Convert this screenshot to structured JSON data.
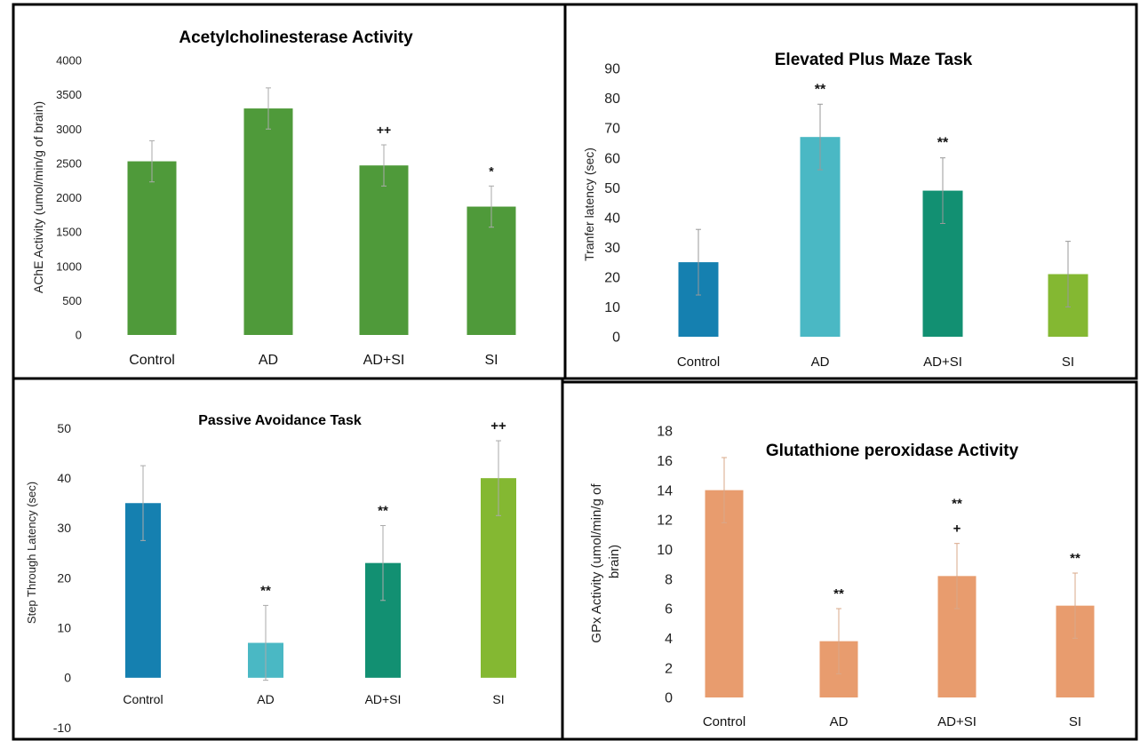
{
  "chart_data": [
    {
      "type": "bar",
      "title": "Acetylcholinesterase Activity",
      "ylabel": "AChE Activity (umol/min/g of brain)",
      "categories": [
        "Control",
        "AD",
        "AD+SI",
        "SI"
      ],
      "values": [
        2530,
        3300,
        2470,
        1870
      ],
      "errors": [
        300,
        300,
        300,
        300
      ],
      "annotations": [
        "",
        "",
        "++",
        "*"
      ],
      "ylim": [
        0,
        4000
      ],
      "yticks": [
        "0",
        "500",
        "1000",
        "1500",
        "2000",
        "2500",
        "3000",
        "3500",
        "4000"
      ],
      "colors": [
        "#4f9a3a",
        "#4f9a3a",
        "#4f9a3a",
        "#4f9a3a"
      ],
      "grid": false,
      "legend": "none"
    },
    {
      "type": "bar",
      "title": "Elevated Plus Maze Task",
      "ylabel": "Tranfer latency (sec)",
      "categories": [
        "Control",
        "AD",
        "AD+SI",
        "SI"
      ],
      "values": [
        25,
        67,
        49,
        21
      ],
      "errors": [
        11,
        11,
        11,
        11
      ],
      "annotations": [
        "",
        "**",
        "**",
        ""
      ],
      "ylim": [
        0,
        90
      ],
      "yticks": [
        "0",
        "10",
        "20",
        "30",
        "40",
        "50",
        "60",
        "70",
        "80",
        "90"
      ],
      "colors": [
        "#1580b0",
        "#4ab8c4",
        "#129072",
        "#84b832"
      ],
      "grid": false,
      "legend": "none"
    },
    {
      "type": "bar",
      "title": "Passive Avoidance Task",
      "ylabel": "Step Through Latency (sec)",
      "categories": [
        "Control",
        "AD",
        "AD+SI",
        "SI"
      ],
      "values": [
        35,
        7,
        23,
        40
      ],
      "errors": [
        7.5,
        7.5,
        7.5,
        7.5
      ],
      "annotations": [
        "",
        "**",
        "**",
        "++"
      ],
      "ylim": [
        -10,
        50
      ],
      "yticks": [
        "-10",
        "0",
        "10",
        "20",
        "30",
        "40",
        "50"
      ],
      "colors": [
        "#1580b0",
        "#4ab8c4",
        "#129072",
        "#84b832"
      ],
      "grid": false,
      "legend": "none"
    },
    {
      "type": "bar",
      "title": "Glutathione peroxidase Activity",
      "ylabel": "GPx Activity (umol/min/g of brain)",
      "categories": [
        "Control",
        "AD",
        "AD+SI",
        "SI"
      ],
      "values": [
        14,
        3.8,
        8.2,
        6.2
      ],
      "errors": [
        2.2,
        2.2,
        2.2,
        2.2
      ],
      "annotations": [
        "",
        "**",
        "**|+",
        "**"
      ],
      "ylim": [
        0,
        18
      ],
      "yticks": [
        "0",
        "2",
        "4",
        "6",
        "8",
        "10",
        "12",
        "14",
        "16",
        "18"
      ],
      "colors": [
        "#e89c6e",
        "#e89c6e",
        "#e89c6e",
        "#e89c6e"
      ],
      "grid": false,
      "legend": "none"
    }
  ]
}
